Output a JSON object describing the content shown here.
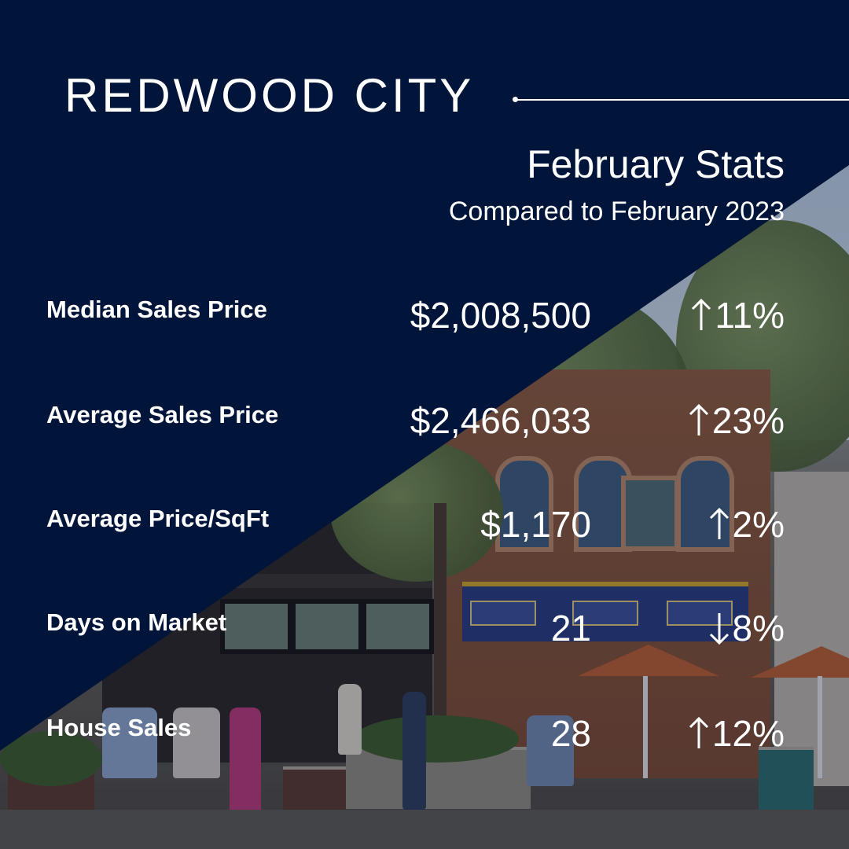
{
  "header": {
    "city": "REDWOOD CITY",
    "title": "February Stats",
    "subtitle": "Compared to February 2023"
  },
  "colors": {
    "navy": "#01153a",
    "text": "#ffffff"
  },
  "stats": [
    {
      "label": "Median Sales Price",
      "value": "$2,008,500",
      "direction": "up",
      "arrow_icon": "arrow-up-icon",
      "change": "11%"
    },
    {
      "label": "Average Sales Price",
      "value": "$2,466,033",
      "direction": "up",
      "arrow_icon": "arrow-up-icon",
      "change": "23%"
    },
    {
      "label": "Average Price/SqFt",
      "value": "$1,170",
      "direction": "up",
      "arrow_icon": "arrow-up-icon",
      "change": "2%"
    },
    {
      "label": "Days on Market",
      "value": "21",
      "direction": "down",
      "arrow_icon": "arrow-down-icon",
      "change": "8%"
    },
    {
      "label": "House Sales",
      "value": "28",
      "direction": "up",
      "arrow_icon": "arrow-up-icon",
      "change": "12%"
    }
  ]
}
